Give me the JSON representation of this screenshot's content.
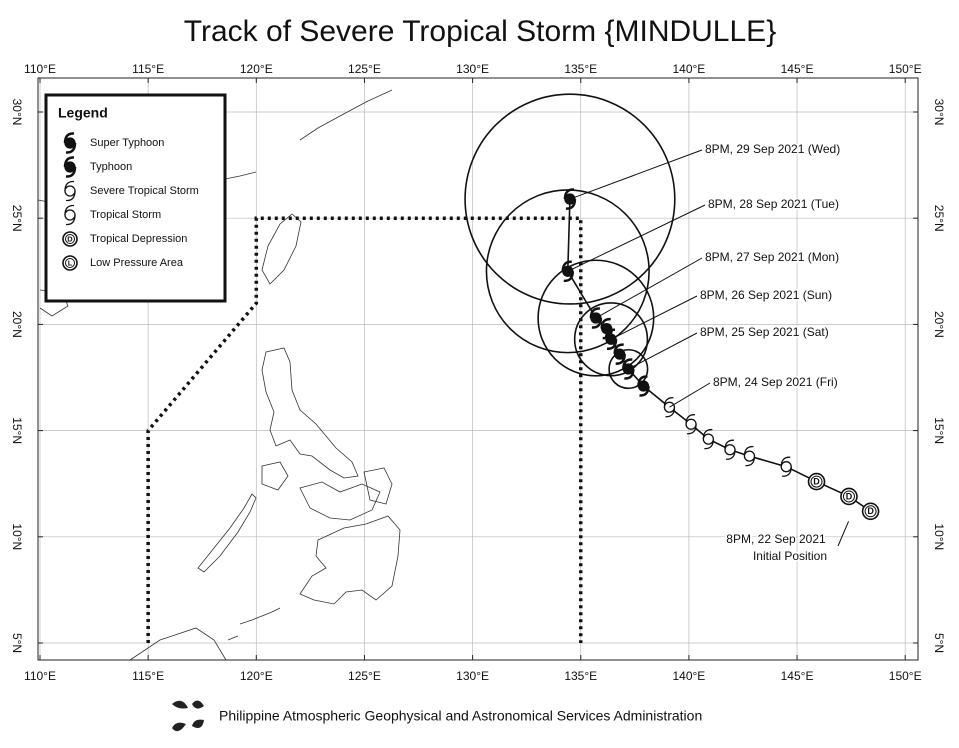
{
  "title": "Track of Severe Tropical Storm  {MINDULLE}",
  "footer": "Philippine Atmospheric Geophysical and Astronomical Services Administration",
  "lon_ticks": [
    {
      "value": 110,
      "label": "110°E"
    },
    {
      "value": 115,
      "label": "115°E"
    },
    {
      "value": 120,
      "label": "120°E"
    },
    {
      "value": 125,
      "label": "125°E"
    },
    {
      "value": 130,
      "label": "130°E"
    },
    {
      "value": 135,
      "label": "135°E"
    },
    {
      "value": 140,
      "label": "140°E"
    },
    {
      "value": 145,
      "label": "145°E"
    },
    {
      "value": 150,
      "label": "150°E"
    }
  ],
  "lat_ticks": [
    {
      "value": 5,
      "label": "5°N"
    },
    {
      "value": 10,
      "label": "10°N"
    },
    {
      "value": 15,
      "label": "15°N"
    },
    {
      "value": 20,
      "label": "20°N"
    },
    {
      "value": 25,
      "label": "25°N"
    },
    {
      "value": 30,
      "label": "30°N"
    }
  ],
  "legend": {
    "title": "Legend",
    "items": [
      "Super Typhoon",
      "Typhoon",
      "Severe Tropical Storm",
      "Tropical Storm",
      "Tropical Depression",
      "Low Pressure Area"
    ]
  },
  "par_boundary": [
    [
      115,
      5
    ],
    [
      115,
      15
    ],
    [
      120,
      21
    ],
    [
      120,
      25
    ],
    [
      135,
      25
    ],
    [
      135,
      5
    ]
  ],
  "track": [
    {
      "lon": 148.4,
      "lat": 11.2,
      "category": "Tropical Depression"
    },
    {
      "lon": 147.4,
      "lat": 11.9,
      "category": "Tropical Depression"
    },
    {
      "lon": 145.9,
      "lat": 12.6,
      "category": "Tropical Depression"
    },
    {
      "lon": 144.5,
      "lat": 13.3,
      "category": "Tropical Storm"
    },
    {
      "lon": 142.8,
      "lat": 13.8,
      "category": "Tropical Storm"
    },
    {
      "lon": 141.9,
      "lat": 14.1,
      "category": "Tropical Storm"
    },
    {
      "lon": 140.9,
      "lat": 14.6,
      "category": "Tropical Storm"
    },
    {
      "lon": 140.1,
      "lat": 15.3,
      "category": "Tropical Storm"
    },
    {
      "lon": 139.1,
      "lat": 16.1,
      "category": "Severe Tropical Storm"
    },
    {
      "lon": 137.9,
      "lat": 17.1,
      "category": "Typhoon"
    },
    {
      "lon": 137.2,
      "lat": 17.9,
      "category": "Typhoon"
    },
    {
      "lon": 136.8,
      "lat": 18.6,
      "category": "Typhoon"
    },
    {
      "lon": 136.4,
      "lat": 19.3,
      "category": "Typhoon"
    },
    {
      "lon": 136.2,
      "lat": 19.8,
      "category": "Typhoon"
    },
    {
      "lon": 135.7,
      "lat": 20.3,
      "category": "Typhoon"
    },
    {
      "lon": 134.4,
      "lat": 22.5,
      "category": "Typhoon"
    },
    {
      "lon": 134.5,
      "lat": 25.9,
      "category": "Typhoon"
    }
  ],
  "forecast": [
    {
      "label": "8PM, 29 Sep 2021 (Wed)",
      "lon": 134.5,
      "lat": 25.9,
      "radius": 4.9
    },
    {
      "label": "8PM, 28 Sep 2021 (Tue)",
      "lon": 134.4,
      "lat": 22.5,
      "radius": 3.8
    },
    {
      "label": "8PM, 27 Sep 2021 (Mon)",
      "lon": 135.7,
      "lat": 20.3,
      "radius": 2.7
    },
    {
      "label": "8PM, 26 Sep 2021 (Sun)",
      "lon": 136.4,
      "lat": 19.3,
      "radius": 1.7
    },
    {
      "label": "8PM, 25 Sep 2021 (Sat)",
      "lon": 137.2,
      "lat": 17.9,
      "radius": 0.9
    },
    {
      "label": "8PM, 24 Sep 2021 (Fri)",
      "lon": 139.1,
      "lat": 16.1,
      "radius": 0
    }
  ],
  "initial": {
    "label": "8PM, 22 Sep 2021",
    "note": "Initial Position"
  }
}
